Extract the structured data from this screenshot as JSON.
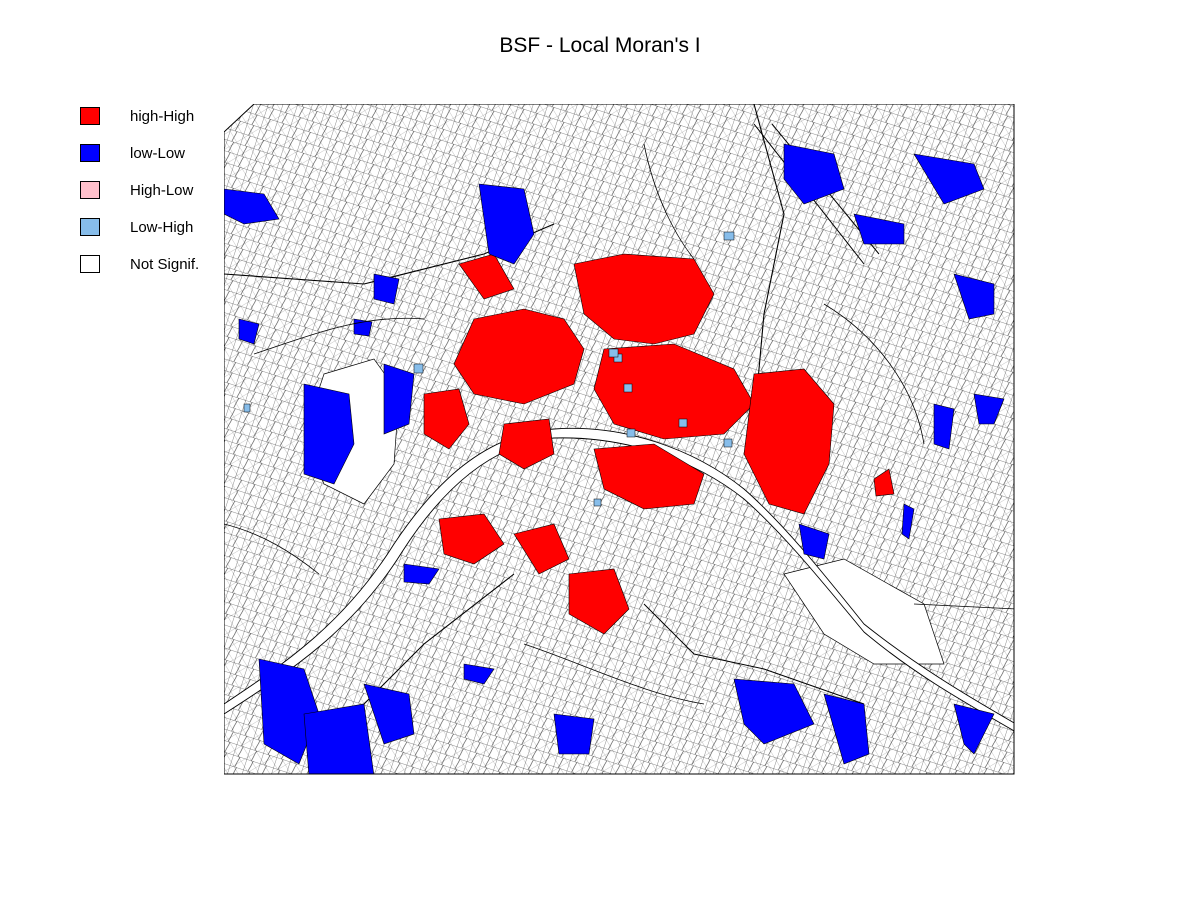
{
  "title": "BSF - Local Moran's I",
  "legend": [
    {
      "label": "high-High",
      "color": "#ff0000"
    },
    {
      "label": "low-Low",
      "color": "#0000ff"
    },
    {
      "label": "High-Low",
      "color": "#ffc0cb"
    },
    {
      "label": "Low-High",
      "color": "#87bdea"
    },
    {
      "label": "Not Signif.",
      "color": "#ffffff"
    }
  ],
  "map": {
    "background": "#ffffff",
    "boundary_color": "#000000"
  }
}
